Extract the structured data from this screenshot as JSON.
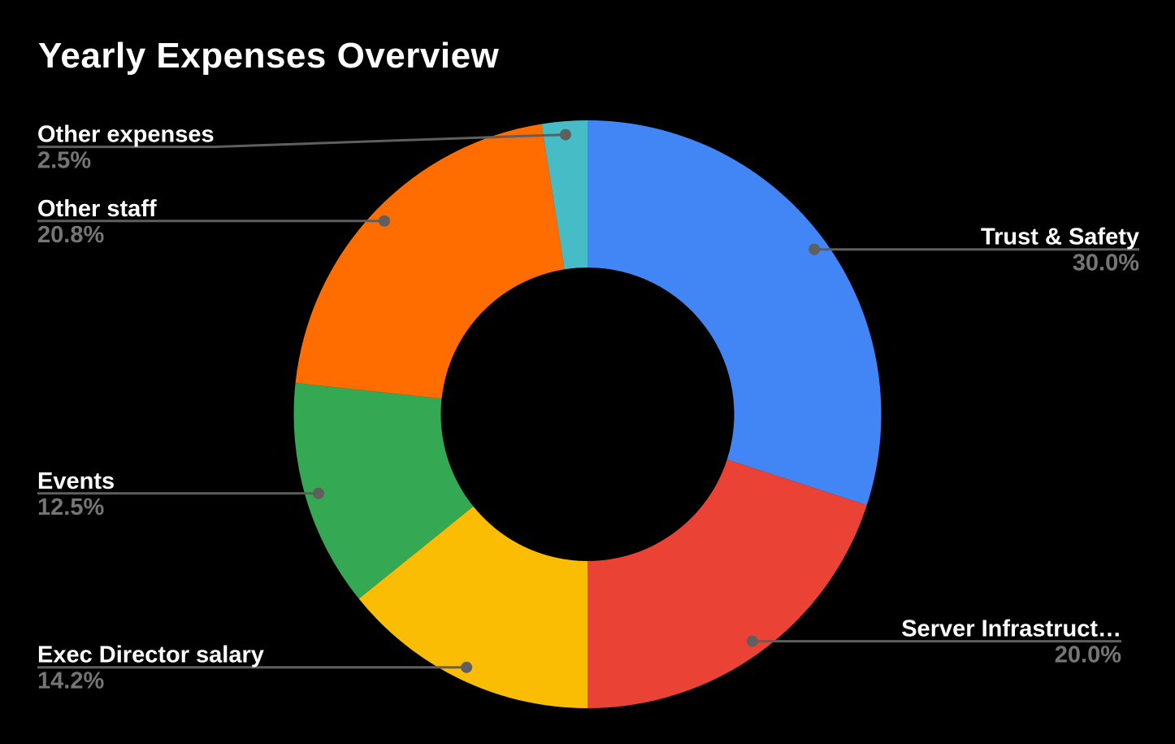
{
  "chart_data": {
    "type": "pie",
    "subtype": "donut",
    "title": "Yearly Expenses Overview",
    "donut_hole_ratio": 0.5,
    "start_angle_deg": 0,
    "direction": "clockwise",
    "background": "#000000",
    "legend_position": "labeled-callouts",
    "slices": [
      {
        "label": "Trust & Safety",
        "value": 30.0,
        "display": "30.0%",
        "color": "#4285f4"
      },
      {
        "label": "Server Infrastruct…",
        "value": 20.0,
        "display": "20.0%",
        "color": "#ea4335"
      },
      {
        "label": "Exec Director salary",
        "value": 14.2,
        "display": "14.2%",
        "color": "#fbbc04"
      },
      {
        "label": "Events",
        "value": 12.5,
        "display": "12.5%",
        "color": "#34a853"
      },
      {
        "label": "Other staff",
        "value": 20.8,
        "display": "20.8%",
        "color": "#ff6d01"
      },
      {
        "label": "Other expenses",
        "value": 2.5,
        "display": "2.5%",
        "color": "#46bdc6"
      }
    ],
    "labels_style": {
      "name_color": "#ffffff",
      "percent_color": "#757575",
      "leader_color": "#5f5f5f"
    }
  }
}
